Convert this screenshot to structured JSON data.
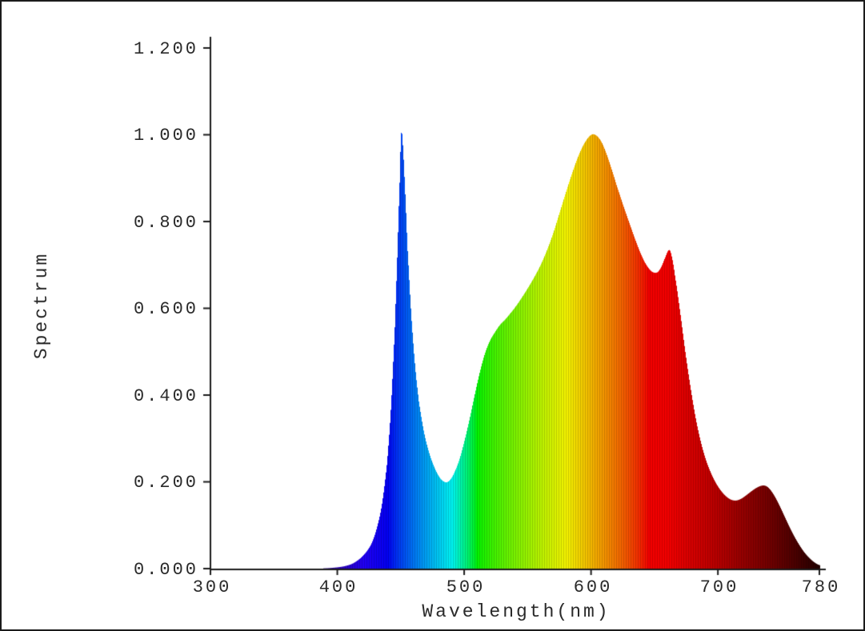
{
  "figure": {
    "background_color": "#ffffff",
    "border_color": "#1b1b1b",
    "text_color": "#2a2a2a"
  },
  "chart_data": {
    "type": "area",
    "title": "",
    "xlabel": "Wavelength(nm)",
    "ylabel": "Spectrum",
    "xlim": [
      300,
      780
    ],
    "ylim": [
      0,
      1.2
    ],
    "grid": false,
    "legend": "none",
    "fill_style": "spectral-wavelength-colors",
    "axis_color": "#1b1b1b",
    "x_ticks": [
      300,
      400,
      500,
      600,
      700,
      780
    ],
    "x_tick_labels": [
      "300",
      "400",
      "500",
      "600",
      "700",
      "780"
    ],
    "y_ticks": [
      0,
      0.2,
      0.4,
      0.6,
      0.8,
      1.0,
      1.2
    ],
    "y_tick_labels": [
      "0.000",
      "0.200",
      "0.400",
      "0.600",
      "0.800",
      "1.000",
      "1.200"
    ],
    "points": [
      [
        300,
        0
      ],
      [
        380,
        0
      ],
      [
        392,
        0.001
      ],
      [
        400,
        0.003
      ],
      [
        406,
        0.006
      ],
      [
        412,
        0.012
      ],
      [
        418,
        0.024
      ],
      [
        423,
        0.04
      ],
      [
        427,
        0.06
      ],
      [
        431,
        0.095
      ],
      [
        435,
        0.15
      ],
      [
        439,
        0.245
      ],
      [
        442,
        0.37
      ],
      [
        445,
        0.55
      ],
      [
        447,
        0.72
      ],
      [
        449,
        0.9
      ],
      [
        450,
        1.0
      ],
      [
        451,
        0.99
      ],
      [
        453,
        0.88
      ],
      [
        455,
        0.74
      ],
      [
        458,
        0.585
      ],
      [
        461,
        0.468
      ],
      [
        464,
        0.385
      ],
      [
        468,
        0.315
      ],
      [
        472,
        0.268
      ],
      [
        476,
        0.235
      ],
      [
        480,
        0.212
      ],
      [
        483,
        0.202
      ],
      [
        486,
        0.199
      ],
      [
        489,
        0.206
      ],
      [
        492,
        0.222
      ],
      [
        496,
        0.252
      ],
      [
        500,
        0.295
      ],
      [
        504,
        0.345
      ],
      [
        508,
        0.4
      ],
      [
        512,
        0.452
      ],
      [
        516,
        0.495
      ],
      [
        520,
        0.525
      ],
      [
        524,
        0.545
      ],
      [
        528,
        0.562
      ],
      [
        532,
        0.574
      ],
      [
        536,
        0.588
      ],
      [
        540,
        0.603
      ],
      [
        545,
        0.624
      ],
      [
        550,
        0.647
      ],
      [
        555,
        0.672
      ],
      [
        560,
        0.7
      ],
      [
        565,
        0.734
      ],
      [
        570,
        0.774
      ],
      [
        575,
        0.821
      ],
      [
        580,
        0.868
      ],
      [
        585,
        0.913
      ],
      [
        590,
        0.953
      ],
      [
        595,
        0.983
      ],
      [
        600,
        1.0
      ],
      [
        604,
        0.998
      ],
      [
        608,
        0.983
      ],
      [
        612,
        0.955
      ],
      [
        616,
        0.92
      ],
      [
        620,
        0.882
      ],
      [
        625,
        0.838
      ],
      [
        630,
        0.796
      ],
      [
        635,
        0.755
      ],
      [
        640,
        0.719
      ],
      [
        644,
        0.697
      ],
      [
        648,
        0.684
      ],
      [
        652,
        0.683
      ],
      [
        655,
        0.695
      ],
      [
        658,
        0.716
      ],
      [
        661,
        0.734
      ],
      [
        663,
        0.723
      ],
      [
        666,
        0.672
      ],
      [
        670,
        0.59
      ],
      [
        674,
        0.5
      ],
      [
        678,
        0.42
      ],
      [
        682,
        0.35
      ],
      [
        686,
        0.295
      ],
      [
        690,
        0.253
      ],
      [
        694,
        0.222
      ],
      [
        698,
        0.198
      ],
      [
        702,
        0.18
      ],
      [
        706,
        0.167
      ],
      [
        710,
        0.159
      ],
      [
        714,
        0.157
      ],
      [
        718,
        0.161
      ],
      [
        722,
        0.169
      ],
      [
        726,
        0.178
      ],
      [
        730,
        0.186
      ],
      [
        734,
        0.191
      ],
      [
        737,
        0.191
      ],
      [
        740,
        0.185
      ],
      [
        744,
        0.169
      ],
      [
        748,
        0.147
      ],
      [
        752,
        0.122
      ],
      [
        756,
        0.097
      ],
      [
        760,
        0.074
      ],
      [
        764,
        0.054
      ],
      [
        768,
        0.037
      ],
      [
        772,
        0.024
      ],
      [
        776,
        0.014
      ],
      [
        780,
        0.008
      ]
    ]
  }
}
